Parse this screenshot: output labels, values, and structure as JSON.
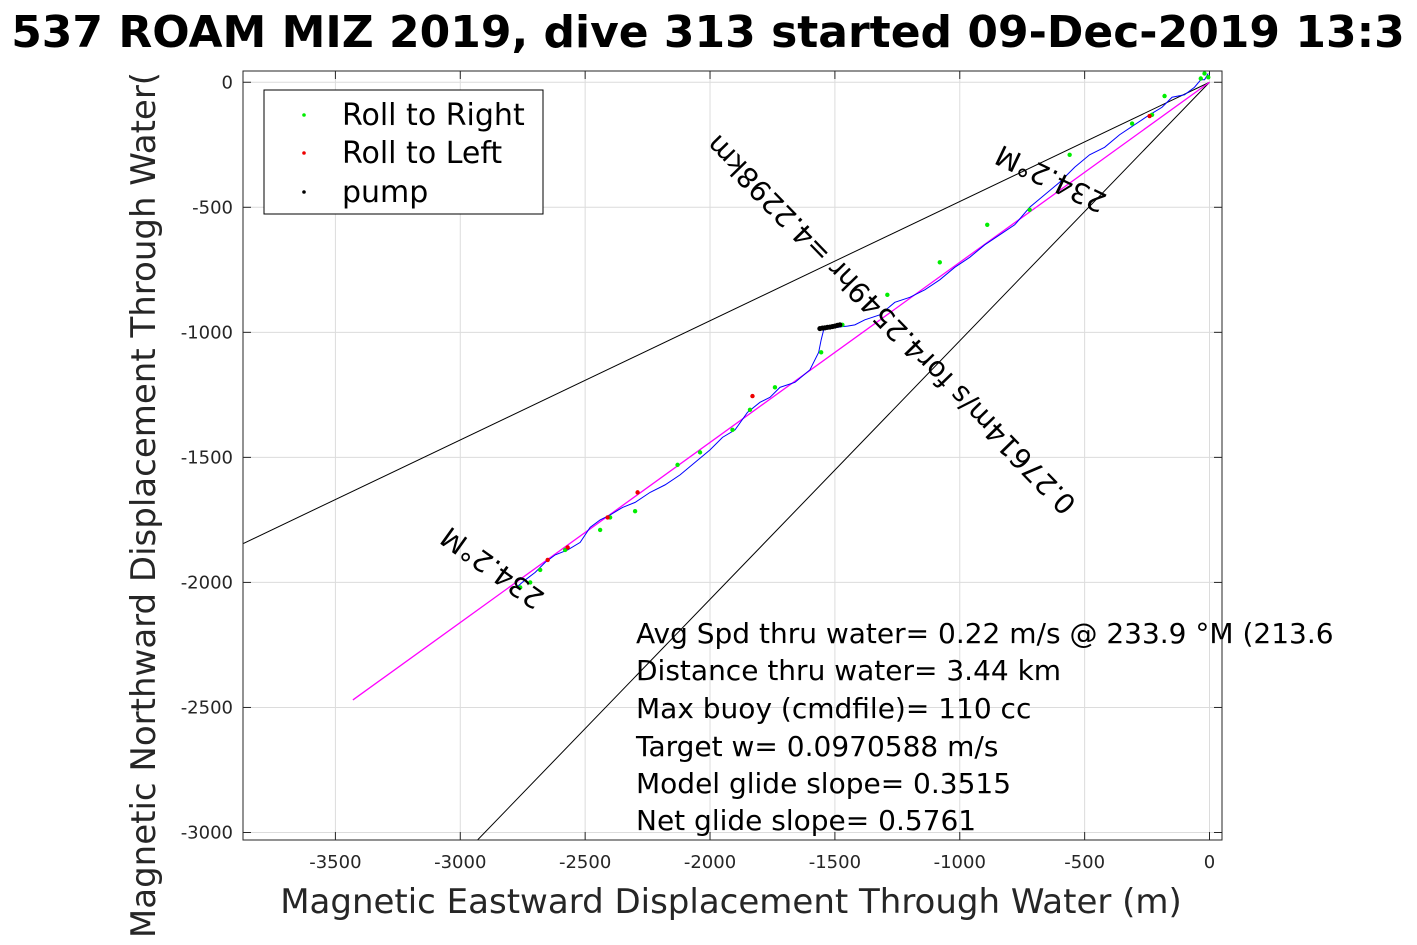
{
  "chart_data": {
    "type": "scatter",
    "title": "537 ROAM MIZ 2019, dive 313 started 09-Dec-2019 13:3",
    "xlabel": "Magnetic Eastward Displacement Through Water (m)",
    "ylabel": "Magnetic Northward Displacement Through Water(",
    "xlim": [
      -3870,
      50
    ],
    "ylim": [
      -3030,
      45
    ],
    "x_ticks": [
      -3500,
      -3000,
      -2500,
      -2000,
      -1500,
      -1000,
      -500,
      0
    ],
    "y_ticks": [
      -3000,
      -2500,
      -2000,
      -1500,
      -1000,
      -500,
      0
    ],
    "grid": true,
    "legend": {
      "position": "top-left",
      "entries": [
        {
          "label": "Roll to Right",
          "color": "#00ee00"
        },
        {
          "label": "Roll to Left",
          "color": "#ee0000"
        },
        {
          "label": "pump",
          "color": "#000000"
        }
      ]
    },
    "track": {
      "color": "#0000ff",
      "x": [
        -5,
        -20,
        -35,
        -60,
        -100,
        -150,
        -190,
        -240,
        -300,
        -360,
        -420,
        -480,
        -540,
        -600,
        -660,
        -720,
        -780,
        -840,
        -900,
        -960,
        -1020,
        -1080,
        -1140,
        -1200,
        -1260,
        -1320,
        -1380,
        -1420,
        -1450,
        -1470,
        -1490,
        -1520,
        -1545,
        -1555,
        -1565,
        -1600,
        -1660,
        -1720,
        -1760,
        -1800,
        -1850,
        -1900,
        -1950,
        -2000,
        -2060,
        -2120,
        -2180,
        -2240,
        -2300,
        -2350,
        -2400,
        -2440,
        -2480,
        -2520,
        -2570,
        -2620,
        -2660,
        -2700,
        -2740,
        -2775
      ],
      "y": [
        35,
        10,
        10,
        -20,
        -50,
        -60,
        -100,
        -130,
        -170,
        -210,
        -260,
        -290,
        -340,
        -400,
        -450,
        -500,
        -570,
        -610,
        -650,
        -700,
        -740,
        -790,
        -830,
        -860,
        -880,
        -930,
        -950,
        -970,
        -975,
        -977,
        -980,
        -985,
        -990,
        -1030,
        -1080,
        -1150,
        -1200,
        -1220,
        -1260,
        -1280,
        -1320,
        -1390,
        -1420,
        -1470,
        -1520,
        -1570,
        -1610,
        -1640,
        -1680,
        -1700,
        -1730,
        -1750,
        -1780,
        -1840,
        -1870,
        -1890,
        -1920,
        -1960,
        -1990,
        -2020
      ]
    },
    "series": [
      {
        "name": "Roll to Right",
        "color": "#00ee00",
        "x": [
          -5,
          -20,
          -35,
          -180,
          -230,
          -310,
          -560,
          -720,
          -890,
          -1080,
          -1290,
          -1470,
          -1555,
          -1740,
          -1840,
          -1910,
          -2040,
          -2130,
          -2300,
          -2400,
          -2440,
          -2580,
          -2680,
          -2720,
          -2760
        ],
        "y": [
          20,
          35,
          15,
          -55,
          -130,
          -165,
          -290,
          -510,
          -570,
          -720,
          -850,
          -970,
          -1080,
          -1220,
          -1310,
          -1390,
          -1480,
          -1530,
          -1715,
          -1740,
          -1790,
          -1870,
          -1950,
          -2000,
          -2020
        ]
      },
      {
        "name": "Roll to Left",
        "color": "#ee0000",
        "x": [
          -240,
          -1830,
          -2290,
          -2410,
          -2570,
          -2650
        ],
        "y": [
          -135,
          -1255,
          -1640,
          -1740,
          -1860,
          -1910
        ]
      },
      {
        "name": "pump",
        "color": "#000000",
        "x": [
          -1480,
          -1490,
          -1500,
          -1510,
          -1520,
          -1530,
          -1540,
          -1550,
          -1560
        ],
        "y": [
          -970,
          -972,
          -975,
          -977,
          -979,
          -980,
          -982,
          -983,
          -985
        ]
      }
    ],
    "lines": [
      {
        "from": [
          0,
          0
        ],
        "to": [
          -3870,
          -1845
        ],
        "color": "#000000"
      },
      {
        "from": [
          0,
          0
        ],
        "to": [
          -2960,
          -3060
        ],
        "color": "#000000"
      },
      {
        "from": [
          0,
          0
        ],
        "to": [
          -3430,
          -2470
        ],
        "color": "#ff00ff"
      }
    ],
    "line_labels": [
      "234.2°M",
      "234.2°M",
      "0.27614m/s for4.2549hr =4.2298km"
    ],
    "annotations": [
      "Avg Spd thru water=  0.22 m/s @ 233.9 °M (213.6",
      "Distance thru water=  3.44 km",
      "Max buoy (cmdfile)= 110 cc",
      "Target w= 0.0970588 m/s",
      "Model glide slope= 0.3515",
      "Net glide slope= 0.5761"
    ]
  }
}
